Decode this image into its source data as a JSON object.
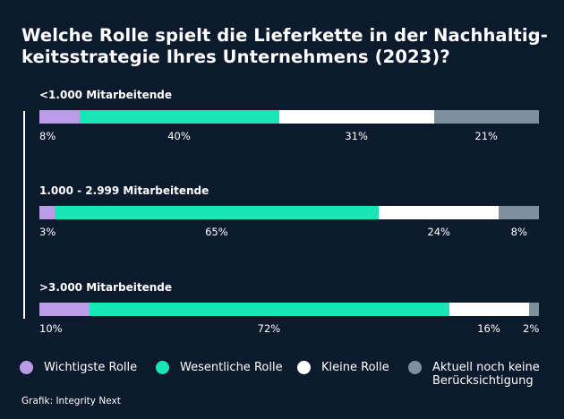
{
  "title": "Welche Rolle spielt die Lieferkette in der Nachhaltigkeitsstrategie Ihres Unternehmens (2023)?",
  "title_lines": [
    "Welche Rolle spielt die Lieferkette in der Nachhaltig-",
    "keitsstrategie Ihres Unternehmens (2023)?"
  ],
  "source": "Grafik: Integrity Next",
  "colors": {
    "background": "#0c1a2e",
    "wichtigste": "#bb9ce6",
    "wesentliche": "#18e6b8",
    "kleine": "#ffffff",
    "aktuell": "#7f8f9e"
  },
  "chart_data": {
    "type": "bar",
    "orientation": "horizontal-stacked",
    "title": "Welche Rolle spielt die Lieferkette in der Nachhaltigkeitsstrategie Ihres Unternehmens (2023)?",
    "unit": "%",
    "categories": [
      "<1.000 Mitarbeitende",
      "1.000 - 2.999 Mitarbeitende",
      ">3.000 Mitarbeitende"
    ],
    "series": [
      {
        "name": "Wichtigste Rolle",
        "values": [
          8,
          3,
          10
        ]
      },
      {
        "name": "Wesentliche Rolle",
        "values": [
          40,
          65,
          72
        ]
      },
      {
        "name": "Kleine Rolle",
        "values": [
          31,
          24,
          16
        ]
      },
      {
        "name": "Aktuell noch keine Berücksichtigung",
        "values": [
          21,
          8,
          2
        ]
      }
    ],
    "value_labels": [
      [
        "8%",
        "40%",
        "31%",
        "21%"
      ],
      [
        "3%",
        "65%",
        "24%",
        "8%"
      ],
      [
        "10%",
        "72%",
        "16%",
        "2%"
      ]
    ],
    "legend_position": "bottom",
    "grid": false
  },
  "legend": [
    {
      "label": "Wichtigste Rolle"
    },
    {
      "label": "Wesentliche Rolle"
    },
    {
      "label": "Kleine Rolle"
    },
    {
      "label_lines": [
        "Aktuell noch keine",
        "Berücksichtigung"
      ]
    }
  ]
}
